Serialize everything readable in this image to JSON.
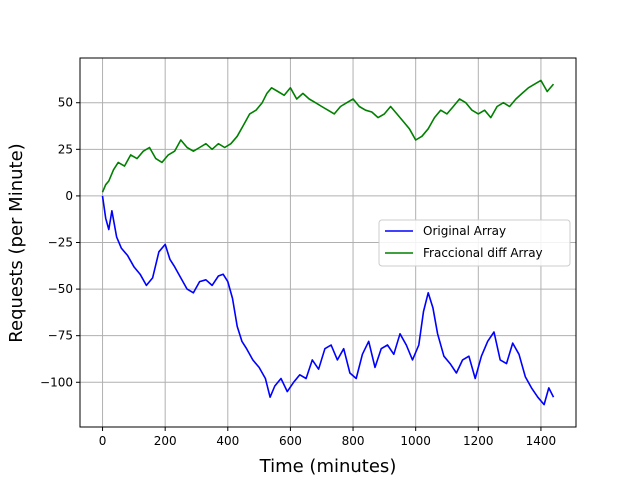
{
  "chart_data": {
    "type": "line",
    "title": "",
    "xlabel": "Time (minutes)",
    "ylabel": "Requests (per Minute)",
    "xlim": [
      -72,
      1512
    ],
    "ylim": [
      -124,
      74
    ],
    "xticks": [
      0,
      200,
      400,
      600,
      800,
      1000,
      1200,
      1400
    ],
    "yticks": [
      -100,
      -75,
      -50,
      -25,
      0,
      25,
      50
    ],
    "grid": true,
    "legend_position": "center-right",
    "series": [
      {
        "name": "Original Array",
        "color": "#0000ff",
        "x": [
          0,
          10,
          20,
          30,
          45,
          60,
          80,
          100,
          120,
          140,
          160,
          180,
          200,
          215,
          230,
          250,
          270,
          290,
          310,
          330,
          350,
          370,
          385,
          400,
          415,
          430,
          445,
          460,
          480,
          500,
          520,
          535,
          550,
          570,
          590,
          610,
          630,
          650,
          670,
          690,
          710,
          730,
          750,
          770,
          790,
          810,
          830,
          850,
          870,
          890,
          910,
          930,
          950,
          970,
          990,
          1010,
          1025,
          1040,
          1055,
          1070,
          1090,
          1110,
          1130,
          1150,
          1170,
          1190,
          1210,
          1230,
          1250,
          1270,
          1290,
          1310,
          1330,
          1350,
          1370,
          1390,
          1410,
          1425,
          1440
        ],
        "y": [
          0,
          -12,
          -18,
          -8,
          -22,
          -28,
          -32,
          -38,
          -42,
          -48,
          -44,
          -30,
          -26,
          -34,
          -38,
          -44,
          -50,
          -52,
          -46,
          -45,
          -48,
          -43,
          -42,
          -46,
          -55,
          -70,
          -78,
          -82,
          -88,
          -92,
          -98,
          -108,
          -102,
          -98,
          -105,
          -100,
          -96,
          -98,
          -88,
          -93,
          -82,
          -80,
          -88,
          -82,
          -95,
          -98,
          -85,
          -78,
          -92,
          -82,
          -80,
          -85,
          -74,
          -80,
          -88,
          -80,
          -62,
          -52,
          -60,
          -74,
          -86,
          -90,
          -95,
          -88,
          -86,
          -98,
          -86,
          -78,
          -73,
          -88,
          -90,
          -79,
          -85,
          -97,
          -103,
          -108,
          -112,
          -103,
          -108
        ]
      },
      {
        "name": "Fraccional diff Array",
        "color": "#008000",
        "x": [
          0,
          10,
          20,
          35,
          50,
          70,
          90,
          110,
          130,
          150,
          170,
          190,
          210,
          230,
          250,
          270,
          290,
          310,
          330,
          350,
          370,
          390,
          410,
          430,
          450,
          470,
          490,
          510,
          525,
          540,
          560,
          580,
          600,
          620,
          640,
          660,
          680,
          700,
          720,
          740,
          760,
          780,
          800,
          820,
          840,
          860,
          880,
          900,
          920,
          940,
          960,
          980,
          1000,
          1020,
          1040,
          1060,
          1080,
          1100,
          1120,
          1140,
          1160,
          1180,
          1200,
          1220,
          1240,
          1260,
          1280,
          1300,
          1320,
          1340,
          1360,
          1380,
          1400,
          1420,
          1440
        ],
        "y": [
          2,
          6,
          8,
          14,
          18,
          16,
          22,
          20,
          24,
          26,
          20,
          18,
          22,
          24,
          30,
          26,
          24,
          26,
          28,
          25,
          28,
          26,
          28,
          32,
          38,
          44,
          46,
          50,
          55,
          58,
          56,
          54,
          58,
          52,
          55,
          52,
          50,
          48,
          46,
          44,
          48,
          50,
          52,
          48,
          46,
          45,
          42,
          44,
          48,
          44,
          40,
          36,
          30,
          32,
          36,
          42,
          46,
          44,
          48,
          52,
          50,
          46,
          44,
          46,
          42,
          48,
          50,
          48,
          52,
          55,
          58,
          60,
          62,
          56,
          60
        ]
      }
    ]
  }
}
